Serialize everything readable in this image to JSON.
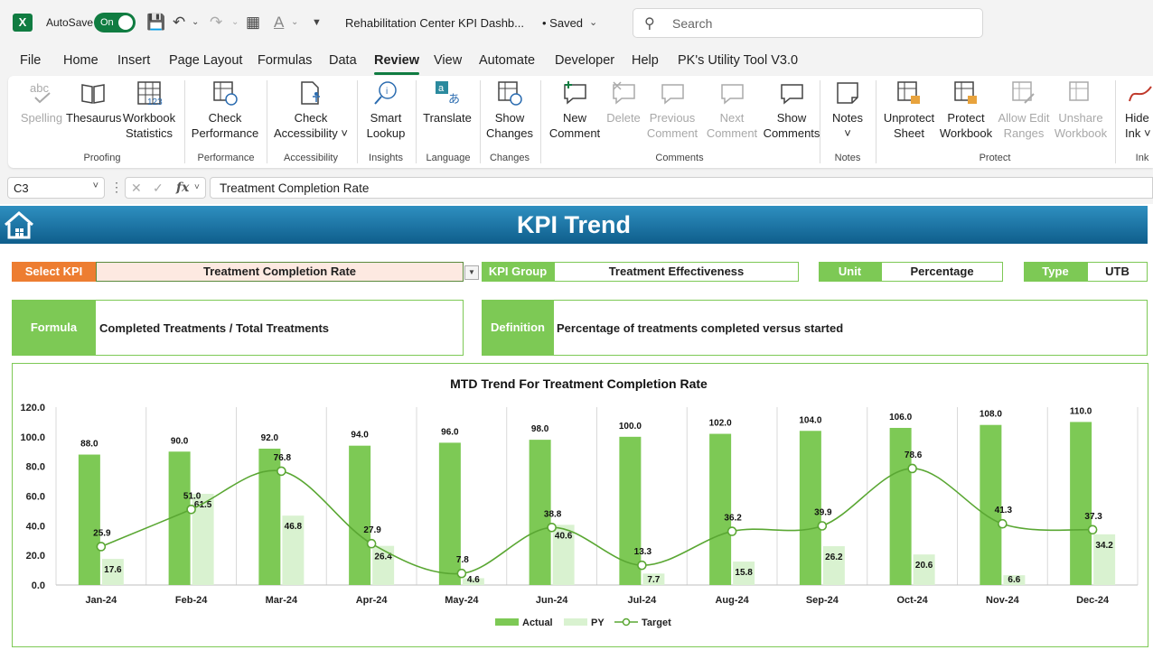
{
  "titlebar": {
    "autosave_label": "AutoSave",
    "autosave_state": "On",
    "doc_title": "Rehabilitation Center KPI Dashb...",
    "saved_state": "• Saved",
    "search_placeholder": "Search"
  },
  "menu": [
    "File",
    "Home",
    "Insert",
    "Page Layout",
    "Formulas",
    "Data",
    "Review",
    "View",
    "Automate",
    "Developer",
    "Help",
    "PK's Utility Tool V3.0"
  ],
  "menu_active": "Review",
  "ribbon": {
    "buttons": {
      "spelling": "Spelling",
      "thesaurus": "Thesaurus",
      "workbook_statistics_1": "Workbook",
      "workbook_statistics_2": "Statistics",
      "check_performance_1": "Check",
      "check_performance_2": "Performance",
      "check_accessibility_1": "Check",
      "check_accessibility_2": "Accessibility",
      "smart_lookup_1": "Smart",
      "smart_lookup_2": "Lookup",
      "translate": "Translate",
      "show_changes_1": "Show",
      "show_changes_2": "Changes",
      "new_comment_1": "New",
      "new_comment_2": "Comment",
      "delete": "Delete",
      "previous_comment_1": "Previous",
      "previous_comment_2": "Comment",
      "next_comment_1": "Next",
      "next_comment_2": "Comment",
      "show_comments_1": "Show",
      "show_comments_2": "Comments",
      "notes": "Notes",
      "unprotect_sheet_1": "Unprotect",
      "unprotect_sheet_2": "Sheet",
      "protect_workbook_1": "Protect",
      "protect_workbook_2": "Workbook",
      "allow_edit_ranges_1": "Allow Edit",
      "allow_edit_ranges_2": "Ranges",
      "unshare_workbook_1": "Unshare",
      "unshare_workbook_2": "Workbook",
      "hide_ink_1": "Hide",
      "hide_ink_2": "Ink"
    },
    "groups": {
      "proofing": "Proofing",
      "performance": "Performance",
      "accessibility": "Accessibility",
      "insights": "Insights",
      "language": "Language",
      "changes": "Changes",
      "comments": "Comments",
      "notes": "Notes",
      "protect": "Protect",
      "ink": "Ink"
    }
  },
  "formula_bar": {
    "name_box": "C3",
    "fx": "fx",
    "content": "Treatment Completion Rate"
  },
  "dashboard": {
    "banner_title": "KPI Trend",
    "select_kpi_label": "Select KPI",
    "select_kpi_value": "Treatment Completion Rate",
    "kpi_group_label": "KPI Group",
    "kpi_group_value": "Treatment Effectiveness",
    "unit_label": "Unit",
    "unit_value": "Percentage",
    "type_label": "Type",
    "type_value": "UTB",
    "formula_label": "Formula",
    "formula_value": "Completed Treatments / Total Treatments",
    "definition_label": "Definition",
    "definition_value": "Percentage of treatments completed versus started"
  },
  "colors": {
    "excel_green": "#107c41",
    "label_green": "#7dc955",
    "label_orange": "#ed7d31",
    "select_fill": "#fde9e1",
    "actual_bar": "#7dc955",
    "py_bar": "#d9f2d0",
    "target_line": "#5aa733",
    "banner_top": "#2e8fc0",
    "banner_bottom": "#0f5e8c"
  },
  "chart_data": {
    "type": "bar",
    "title": "MTD Trend For Treatment Completion Rate",
    "categories": [
      "Jan-24",
      "Feb-24",
      "Mar-24",
      "Apr-24",
      "May-24",
      "Jun-24",
      "Jul-24",
      "Aug-24",
      "Sep-24",
      "Oct-24",
      "Nov-24",
      "Dec-24"
    ],
    "series": [
      {
        "name": "Actual",
        "kind": "bar",
        "values": [
          88.0,
          90.0,
          92.0,
          94.0,
          96.0,
          98.0,
          100.0,
          102.0,
          104.0,
          106.0,
          108.0,
          110.0
        ]
      },
      {
        "name": "PY",
        "kind": "bar",
        "values": [
          17.6,
          61.5,
          46.8,
          26.4,
          4.6,
          40.6,
          7.7,
          15.8,
          26.2,
          20.6,
          6.6,
          34.2
        ]
      },
      {
        "name": "Target",
        "kind": "line",
        "values": [
          25.9,
          51.0,
          76.8,
          27.9,
          7.8,
          38.8,
          13.3,
          36.2,
          39.9,
          78.6,
          41.3,
          37.3
        ]
      }
    ],
    "ylim": [
      0,
      120
    ],
    "yticks": [
      "0.0",
      "20.0",
      "40.0",
      "60.0",
      "80.0",
      "100.0",
      "120.0"
    ],
    "grid": "vertical",
    "legend_position": "bottom"
  }
}
